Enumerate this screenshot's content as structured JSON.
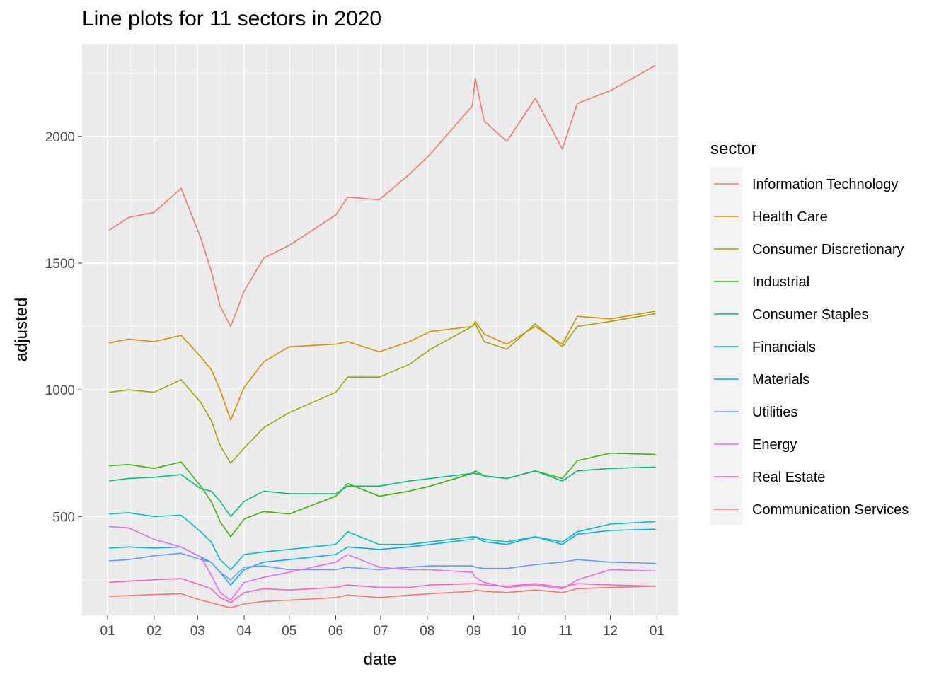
{
  "chart_data": {
    "type": "line",
    "title": "Line plots for 11 sectors in 2020",
    "xlabel": "date",
    "ylabel": "adjusted",
    "legend_title": "sector",
    "legend_position": "right",
    "grid": true,
    "x_tick_labels": [
      "01",
      "02",
      "03",
      "04",
      "05",
      "06",
      "07",
      "08",
      "09",
      "10",
      "11",
      "12",
      "01"
    ],
    "x_tick_dates": [
      "2020-01-01",
      "2020-02-01",
      "2020-03-01",
      "2020-04-01",
      "2020-05-01",
      "2020-06-01",
      "2020-07-01",
      "2020-08-01",
      "2020-09-01",
      "2020-10-01",
      "2020-11-01",
      "2020-12-01",
      "2021-01-01"
    ],
    "xlim": [
      "2019-12-15",
      "2021-01-15"
    ],
    "y_ticks": [
      500,
      1000,
      1500,
      2000
    ],
    "ylim": [
      110,
      2365
    ],
    "series": [
      {
        "name": "Information Technology",
        "color": "#F8766D",
        "x": [
          "2020-01-02",
          "2020-01-15",
          "2020-02-01",
          "2020-02-19",
          "2020-03-03",
          "2020-03-10",
          "2020-03-16",
          "2020-03-23",
          "2020-04-01",
          "2020-04-14",
          "2020-05-01",
          "2020-06-01",
          "2020-06-09",
          "2020-06-30",
          "2020-07-20",
          "2020-08-03",
          "2020-08-31",
          "2020-09-02",
          "2020-09-08",
          "2020-09-23",
          "2020-10-12",
          "2020-10-30",
          "2020-11-09",
          "2020-12-01",
          "2020-12-31"
        ],
        "y": [
          1630,
          1680,
          1700,
          1795,
          1600,
          1470,
          1330,
          1250,
          1390,
          1520,
          1570,
          1690,
          1760,
          1750,
          1850,
          1930,
          2120,
          2230,
          2060,
          1980,
          2150,
          1950,
          2130,
          2180,
          2280
        ]
      },
      {
        "name": "Health Care",
        "color": "#D89000",
        "x": [
          "2020-01-02",
          "2020-01-15",
          "2020-02-01",
          "2020-02-19",
          "2020-03-03",
          "2020-03-10",
          "2020-03-16",
          "2020-03-23",
          "2020-04-01",
          "2020-04-14",
          "2020-05-01",
          "2020-06-01",
          "2020-06-09",
          "2020-06-30",
          "2020-07-20",
          "2020-08-03",
          "2020-08-31",
          "2020-09-02",
          "2020-09-08",
          "2020-09-23",
          "2020-10-12",
          "2020-10-30",
          "2020-11-09",
          "2020-12-01",
          "2020-12-31"
        ],
        "y": [
          1185,
          1200,
          1190,
          1215,
          1130,
          1080,
          1000,
          880,
          1010,
          1110,
          1170,
          1180,
          1190,
          1150,
          1190,
          1230,
          1250,
          1270,
          1220,
          1180,
          1250,
          1180,
          1290,
          1280,
          1310
        ]
      },
      {
        "name": "Consumer Discretionary",
        "color": "#A3A500",
        "x": [
          "2020-01-02",
          "2020-01-15",
          "2020-02-01",
          "2020-02-19",
          "2020-03-03",
          "2020-03-10",
          "2020-03-16",
          "2020-03-23",
          "2020-04-01",
          "2020-04-14",
          "2020-05-01",
          "2020-06-01",
          "2020-06-09",
          "2020-06-30",
          "2020-07-20",
          "2020-08-03",
          "2020-08-31",
          "2020-09-02",
          "2020-09-08",
          "2020-09-23",
          "2020-10-12",
          "2020-10-30",
          "2020-11-09",
          "2020-12-01",
          "2020-12-31"
        ],
        "y": [
          990,
          1000,
          990,
          1040,
          950,
          880,
          780,
          710,
          770,
          850,
          910,
          990,
          1050,
          1050,
          1100,
          1160,
          1250,
          1260,
          1190,
          1160,
          1260,
          1170,
          1250,
          1270,
          1300
        ]
      },
      {
        "name": "Industrial",
        "color": "#39B600",
        "x": [
          "2020-01-02",
          "2020-01-15",
          "2020-02-01",
          "2020-02-19",
          "2020-03-03",
          "2020-03-10",
          "2020-03-16",
          "2020-03-23",
          "2020-04-01",
          "2020-04-14",
          "2020-05-01",
          "2020-06-01",
          "2020-06-09",
          "2020-06-30",
          "2020-07-20",
          "2020-08-03",
          "2020-08-31",
          "2020-09-02",
          "2020-09-08",
          "2020-09-23",
          "2020-10-12",
          "2020-10-30",
          "2020-11-09",
          "2020-12-01",
          "2020-12-31"
        ],
        "y": [
          700,
          705,
          690,
          715,
          620,
          560,
          480,
          420,
          490,
          520,
          510,
          580,
          630,
          580,
          600,
          620,
          670,
          680,
          660,
          650,
          680,
          650,
          720,
          750,
          745
        ]
      },
      {
        "name": "Consumer Staples",
        "color": "#00BF7D",
        "x": [
          "2020-01-02",
          "2020-01-15",
          "2020-02-01",
          "2020-02-19",
          "2020-03-03",
          "2020-03-10",
          "2020-03-16",
          "2020-03-23",
          "2020-04-01",
          "2020-04-14",
          "2020-05-01",
          "2020-06-01",
          "2020-06-09",
          "2020-06-30",
          "2020-07-20",
          "2020-08-03",
          "2020-08-31",
          "2020-09-02",
          "2020-09-08",
          "2020-09-23",
          "2020-10-12",
          "2020-10-30",
          "2020-11-09",
          "2020-12-01",
          "2020-12-31"
        ],
        "y": [
          640,
          650,
          655,
          665,
          610,
          600,
          560,
          500,
          560,
          600,
          590,
          590,
          620,
          620,
          640,
          650,
          670,
          670,
          660,
          650,
          680,
          640,
          680,
          690,
          695
        ]
      },
      {
        "name": "Financials",
        "color": "#00BFC4",
        "x": [
          "2020-01-02",
          "2020-01-15",
          "2020-02-01",
          "2020-02-19",
          "2020-03-03",
          "2020-03-10",
          "2020-03-16",
          "2020-03-23",
          "2020-04-01",
          "2020-04-14",
          "2020-05-01",
          "2020-06-01",
          "2020-06-09",
          "2020-06-30",
          "2020-07-20",
          "2020-08-03",
          "2020-08-31",
          "2020-09-02",
          "2020-09-08",
          "2020-09-23",
          "2020-10-12",
          "2020-10-30",
          "2020-11-09",
          "2020-12-01",
          "2020-12-31"
        ],
        "y": [
          510,
          515,
          500,
          505,
          440,
          400,
          330,
          290,
          350,
          360,
          370,
          390,
          440,
          390,
          390,
          400,
          420,
          420,
          410,
          400,
          420,
          400,
          440,
          470,
          480
        ]
      },
      {
        "name": "Materials",
        "color": "#00B0F6",
        "x": [
          "2020-01-02",
          "2020-01-15",
          "2020-02-01",
          "2020-02-19",
          "2020-03-03",
          "2020-03-10",
          "2020-03-16",
          "2020-03-23",
          "2020-04-01",
          "2020-04-14",
          "2020-05-01",
          "2020-06-01",
          "2020-06-09",
          "2020-06-30",
          "2020-07-20",
          "2020-08-03",
          "2020-08-31",
          "2020-09-02",
          "2020-09-08",
          "2020-09-23",
          "2020-10-12",
          "2020-10-30",
          "2020-11-09",
          "2020-12-01",
          "2020-12-31"
        ],
        "y": [
          375,
          380,
          375,
          380,
          340,
          320,
          280,
          230,
          290,
          320,
          330,
          350,
          380,
          370,
          380,
          390,
          410,
          420,
          400,
          390,
          420,
          390,
          430,
          445,
          450
        ]
      },
      {
        "name": "Utilities",
        "color": "#619CFF",
        "x": [
          "2020-01-02",
          "2020-01-15",
          "2020-02-01",
          "2020-02-19",
          "2020-03-03",
          "2020-03-10",
          "2020-03-16",
          "2020-03-23",
          "2020-04-01",
          "2020-04-14",
          "2020-05-01",
          "2020-06-01",
          "2020-06-09",
          "2020-06-30",
          "2020-07-20",
          "2020-08-03",
          "2020-08-31",
          "2020-09-02",
          "2020-09-08",
          "2020-09-23",
          "2020-10-12",
          "2020-10-30",
          "2020-11-09",
          "2020-12-01",
          "2020-12-31"
        ],
        "y": [
          325,
          330,
          345,
          355,
          330,
          320,
          280,
          250,
          300,
          305,
          290,
          290,
          300,
          290,
          300,
          305,
          305,
          300,
          295,
          295,
          310,
          320,
          330,
          320,
          315
        ]
      },
      {
        "name": "Energy",
        "color": "#E76BF3",
        "x": [
          "2020-01-02",
          "2020-01-15",
          "2020-02-01",
          "2020-02-19",
          "2020-03-03",
          "2020-03-10",
          "2020-03-16",
          "2020-03-23",
          "2020-04-01",
          "2020-04-14",
          "2020-05-01",
          "2020-06-01",
          "2020-06-09",
          "2020-06-30",
          "2020-07-20",
          "2020-08-03",
          "2020-08-31",
          "2020-09-02",
          "2020-09-08",
          "2020-09-23",
          "2020-10-12",
          "2020-10-30",
          "2020-11-09",
          "2020-12-01",
          "2020-12-31"
        ],
        "y": [
          460,
          455,
          410,
          380,
          340,
          270,
          200,
          170,
          240,
          260,
          280,
          320,
          350,
          300,
          290,
          290,
          280,
          260,
          240,
          220,
          230,
          215,
          250,
          290,
          285
        ]
      },
      {
        "name": "Real Estate",
        "color": "#FF62BC",
        "x": [
          "2020-01-02",
          "2020-01-15",
          "2020-02-01",
          "2020-02-19",
          "2020-03-03",
          "2020-03-10",
          "2020-03-16",
          "2020-03-23",
          "2020-04-01",
          "2020-04-14",
          "2020-05-01",
          "2020-06-01",
          "2020-06-09",
          "2020-06-30",
          "2020-07-20",
          "2020-08-03",
          "2020-08-31",
          "2020-09-02",
          "2020-09-08",
          "2020-09-23",
          "2020-10-12",
          "2020-10-30",
          "2020-11-09",
          "2020-12-01",
          "2020-12-31"
        ],
        "y": [
          240,
          245,
          250,
          255,
          230,
          215,
          180,
          160,
          200,
          215,
          210,
          220,
          230,
          220,
          220,
          230,
          235,
          235,
          230,
          225,
          235,
          220,
          235,
          230,
          225
        ]
      },
      {
        "name": "Communication Services",
        "color": "#F8766D",
        "x": [
          "2020-01-02",
          "2020-01-15",
          "2020-02-01",
          "2020-02-19",
          "2020-03-03",
          "2020-03-10",
          "2020-03-16",
          "2020-03-23",
          "2020-04-01",
          "2020-04-14",
          "2020-05-01",
          "2020-06-01",
          "2020-06-09",
          "2020-06-30",
          "2020-07-20",
          "2020-08-03",
          "2020-08-31",
          "2020-09-02",
          "2020-09-08",
          "2020-09-23",
          "2020-10-12",
          "2020-10-30",
          "2020-11-09",
          "2020-12-01",
          "2020-12-31"
        ],
        "y": [
          185,
          188,
          192,
          195,
          170,
          160,
          150,
          140,
          155,
          165,
          170,
          180,
          190,
          180,
          190,
          195,
          205,
          210,
          205,
          200,
          210,
          200,
          215,
          220,
          225
        ]
      }
    ]
  }
}
